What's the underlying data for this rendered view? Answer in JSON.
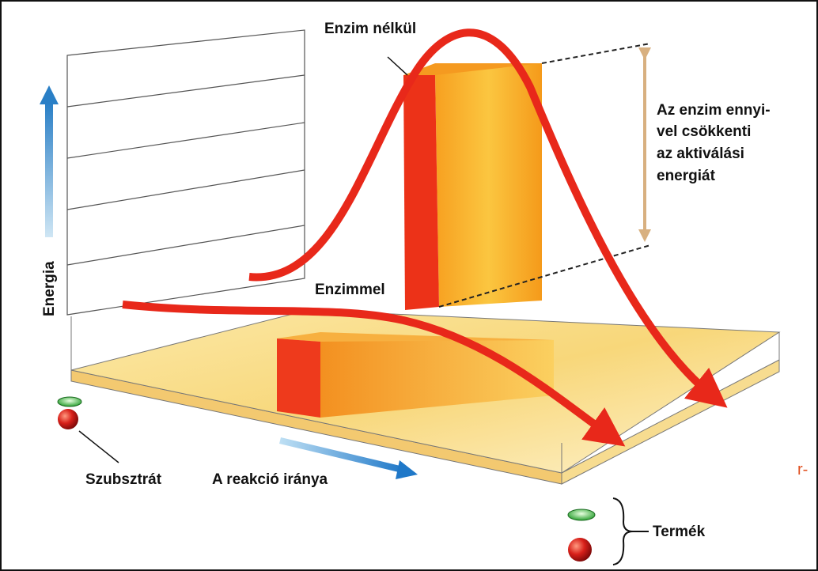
{
  "labels": {
    "without_enzyme": "Enzim nélkül",
    "with_enzyme": "Enzimmel",
    "energy_axis": "Energia",
    "direction": "A reakció iránya",
    "substrate": "Szubsztrát",
    "product": "Termék",
    "note": [
      "Az enzim ennyi-",
      "vel csökkenti",
      "az aktiválási",
      "energiát"
    ],
    "fragment": "r-"
  }
}
